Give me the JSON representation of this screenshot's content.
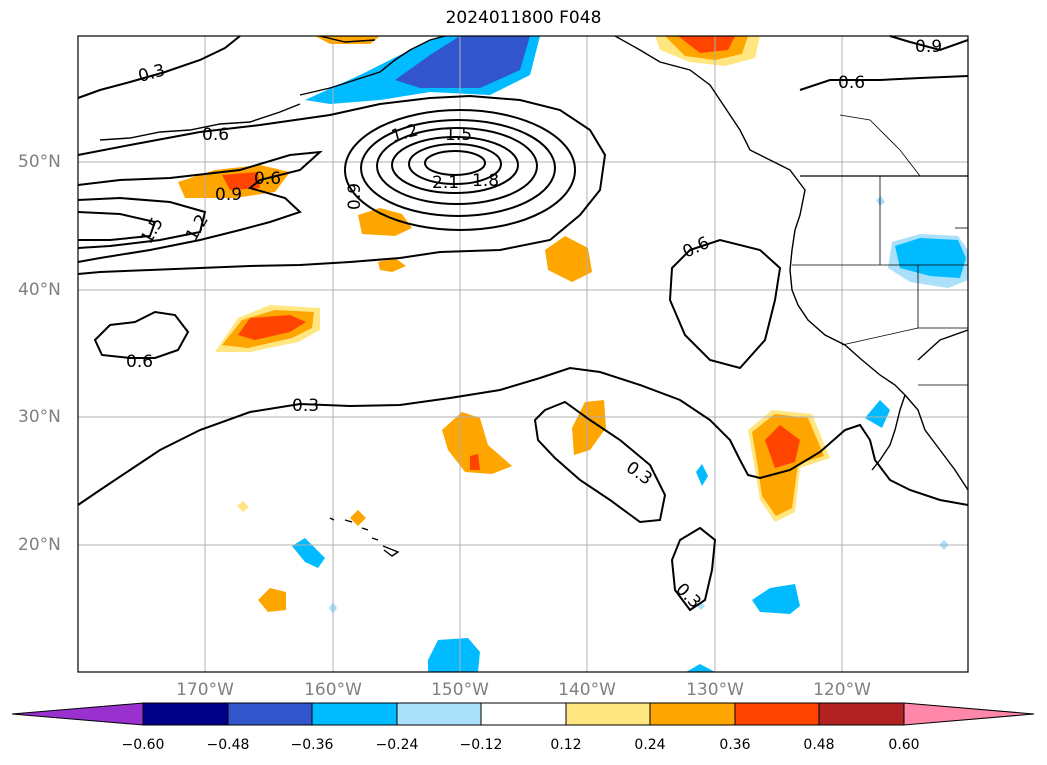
{
  "title": "2024011800 F048",
  "lat_labels": [
    "50°N",
    "40°N",
    "30°N",
    "20°N"
  ],
  "lon_labels": [
    "170°W",
    "160°W",
    "150°W",
    "140°W",
    "130°W",
    "120°W"
  ],
  "contour_labels": [
    "0.3",
    "0.6",
    "0.9",
    "1.2",
    "1.5",
    "1.8",
    "2.1"
  ],
  "colorbar": {
    "ticks": [
      "−0.60",
      "−0.48",
      "−0.36",
      "−0.24",
      "−0.12",
      "0.12",
      "0.24",
      "0.36",
      "0.48",
      "0.60"
    ],
    "colors": [
      "#9b30d0",
      "#000088",
      "#3355cc",
      "#00bbff",
      "#aae0fa",
      "#ffffff",
      "#ffe680",
      "#ffa500",
      "#ff4400",
      "#b22222",
      "#ff88aa"
    ]
  },
  "colors": {
    "land_outline": "#000000",
    "grid": "#b0b0b0",
    "positive_light": "#ffe680",
    "positive_mid": "#ffa500",
    "positive_strong": "#ff4400",
    "negative_light": "#aae0fa",
    "negative_mid": "#00bbff",
    "negative_strong": "#3355cc"
  }
}
